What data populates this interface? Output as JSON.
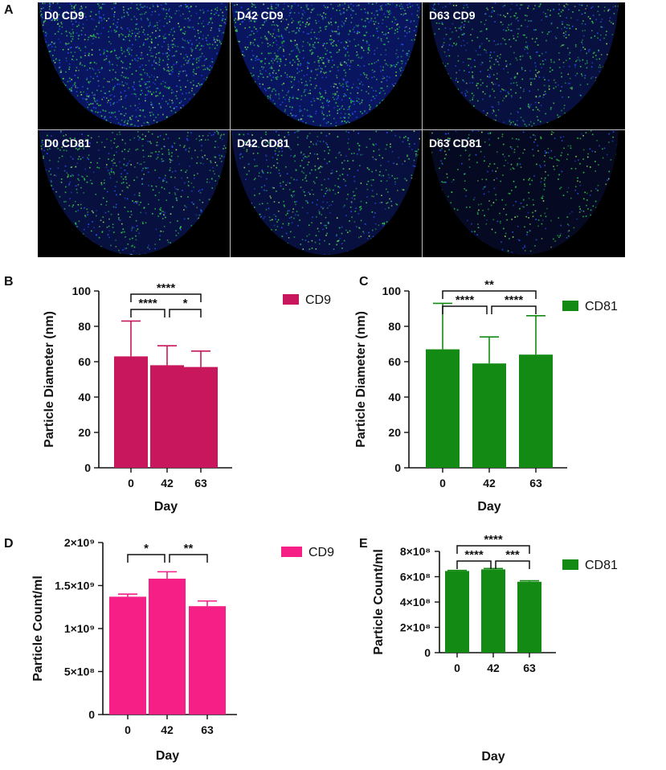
{
  "panel_letters": [
    "A",
    "B",
    "C",
    "D",
    "E"
  ],
  "images": {
    "tiles": [
      {
        "label": "D0 CD9",
        "brightness": 1.0
      },
      {
        "label": "D42 CD9",
        "brightness": 1.0
      },
      {
        "label": "D63 CD9",
        "brightness": 0.65
      },
      {
        "label": "D0 CD81",
        "brightness": 0.55
      },
      {
        "label": "D42 CD81",
        "brightness": 0.55
      },
      {
        "label": "D63 CD81",
        "brightness": 0.4
      }
    ]
  },
  "chart_data": [
    {
      "panel": "B",
      "type": "bar",
      "categories": [
        "0",
        "42",
        "63"
      ],
      "series": [
        {
          "name": "CD9",
          "values": [
            63,
            58,
            57
          ],
          "errors": [
            20,
            11,
            9
          ]
        }
      ],
      "xlabel": "Day",
      "ylabel": "Particle Diameter (nm)",
      "ylim": [
        0,
        100
      ],
      "yticks": [
        "0",
        "20",
        "40",
        "60",
        "80",
        "100"
      ],
      "color": "#c8175d",
      "significance": [
        {
          "from": 0,
          "to": 2,
          "label": "****",
          "level": 2
        },
        {
          "from": 0,
          "to": 1,
          "label": "****",
          "level": 1
        },
        {
          "from": 1,
          "to": 2,
          "label": "*",
          "level": 1
        }
      ],
      "legend": "right"
    },
    {
      "panel": "C",
      "type": "bar",
      "categories": [
        "0",
        "42",
        "63"
      ],
      "series": [
        {
          "name": "CD81",
          "values": [
            67,
            59,
            64
          ],
          "errors": [
            26,
            15,
            22
          ]
        }
      ],
      "xlabel": "Day",
      "ylabel": "Particle Diameter (nm)",
      "ylim": [
        0,
        100
      ],
      "yticks": [
        "0",
        "20",
        "40",
        "60",
        "80",
        "100"
      ],
      "color": "#138a13",
      "significance": [
        {
          "from": 0,
          "to": 2,
          "label": "**",
          "level": 2
        },
        {
          "from": 0,
          "to": 1,
          "label": "****",
          "level": 1
        },
        {
          "from": 1,
          "to": 2,
          "label": "****",
          "level": 1
        }
      ],
      "legend": "right"
    },
    {
      "panel": "D",
      "type": "bar",
      "categories": [
        "0",
        "42",
        "63"
      ],
      "series": [
        {
          "name": "CD9",
          "values": [
            1370000000.0,
            1580000000.0,
            1260000000.0
          ],
          "errors": [
            30000000.0,
            80000000.0,
            60000000.0
          ]
        }
      ],
      "xlabel": "Day",
      "ylabel": "Particle Count/ml",
      "ylim": [
        0,
        2000000000.0
      ],
      "yticks": [
        "0",
        "5×10⁸",
        "1×10⁹",
        "1.5×10⁹",
        "2×10⁹"
      ],
      "color": "#f51f85",
      "significance": [
        {
          "from": 0,
          "to": 1,
          "label": "*",
          "level": 1
        },
        {
          "from": 1,
          "to": 2,
          "label": "**",
          "level": 1
        }
      ],
      "legend": "right"
    },
    {
      "panel": "E",
      "type": "bar",
      "categories": [
        "0",
        "42",
        "63"
      ],
      "series": [
        {
          "name": "CD81",
          "values": [
            645000000.0,
            658000000.0,
            560000000.0
          ],
          "errors": [
            5000000.0,
            7000000.0,
            8000000.0
          ]
        }
      ],
      "xlabel": "Day",
      "ylabel": "Particle Count/ml",
      "ylim": [
        0,
        800000000.0
      ],
      "yticks": [
        "0",
        "2×10⁸",
        "4×10⁸",
        "6×10⁸",
        "8×10⁸"
      ],
      "color": "#138a13",
      "significance": [
        {
          "from": 0,
          "to": 2,
          "label": "****",
          "level": 2
        },
        {
          "from": 0,
          "to": 1,
          "label": "****",
          "level": 1
        },
        {
          "from": 1,
          "to": 2,
          "label": "***",
          "level": 1
        }
      ],
      "legend": "right"
    }
  ]
}
